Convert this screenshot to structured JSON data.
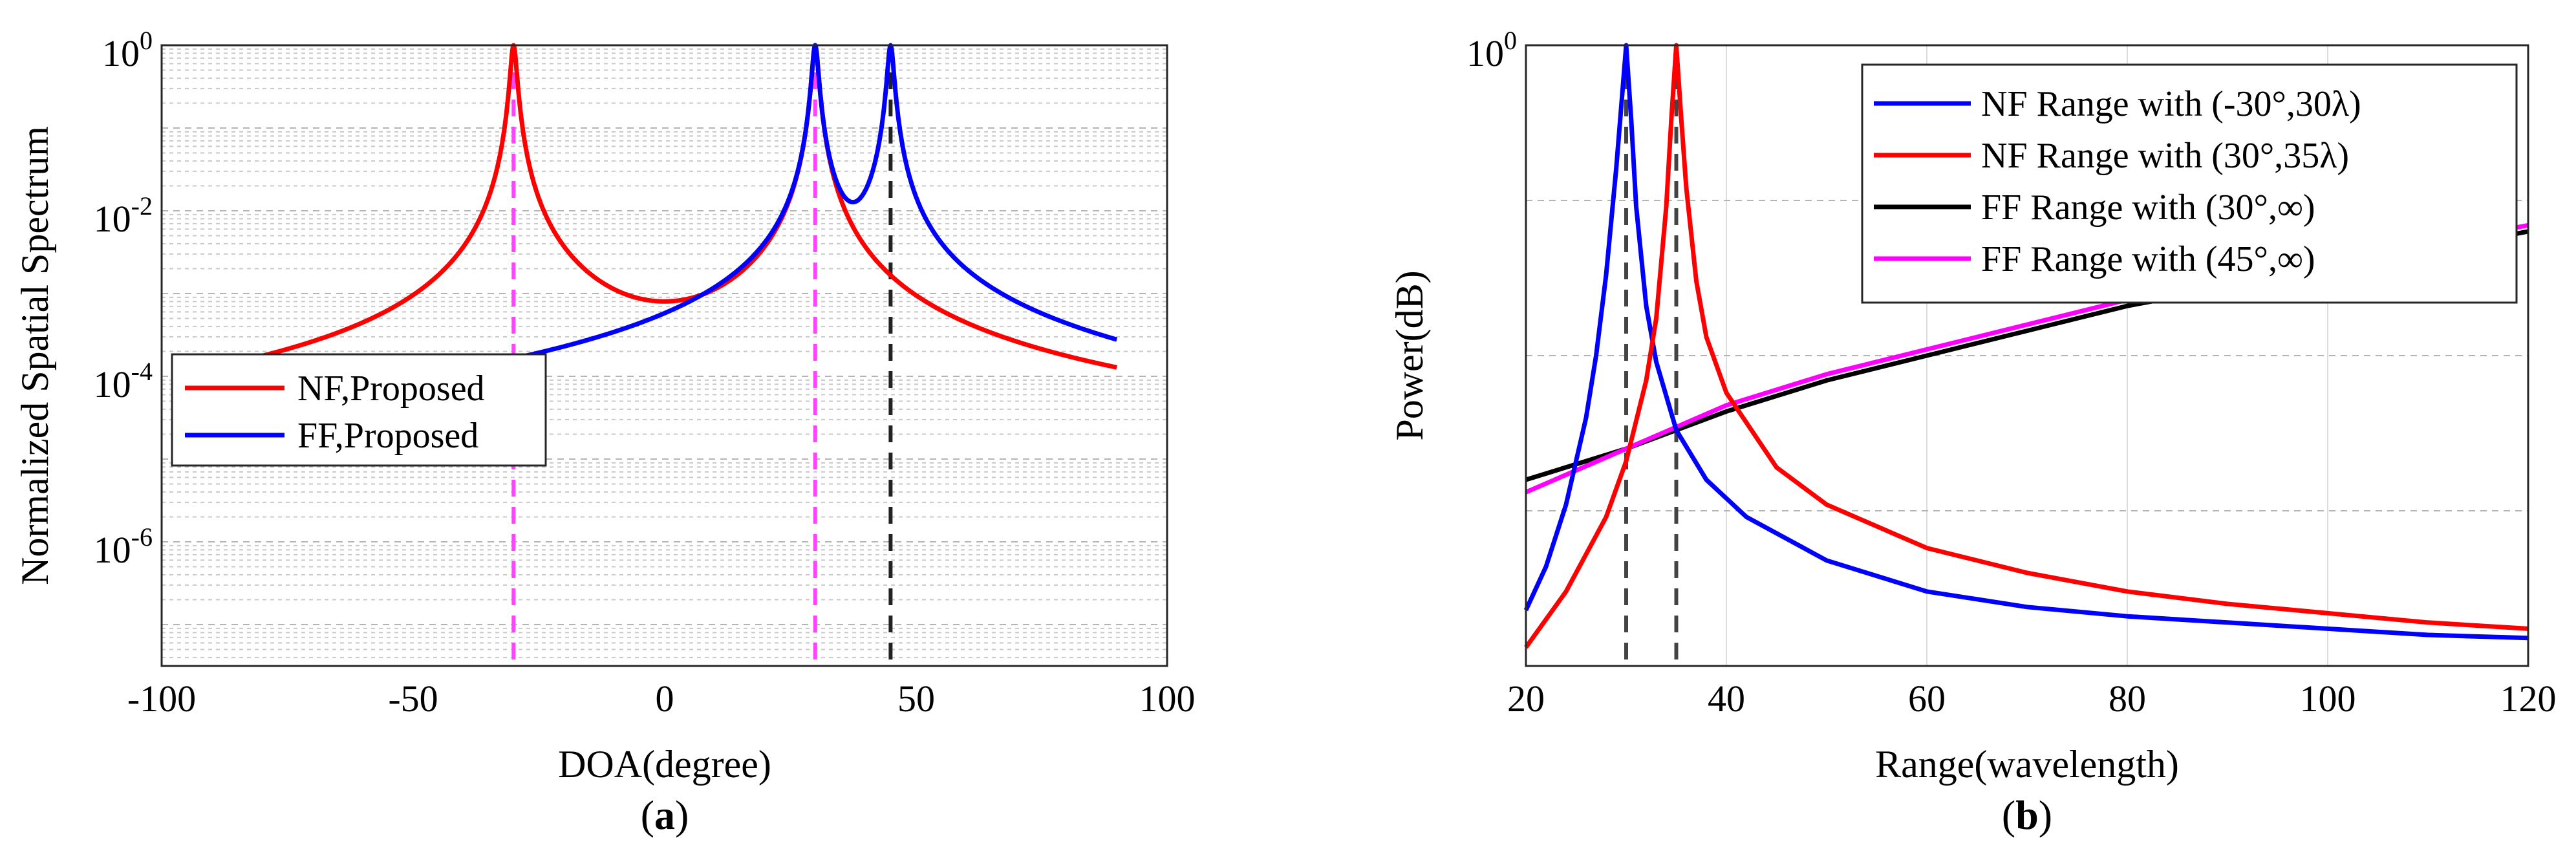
{
  "chart_data": [
    {
      "type": "line",
      "panel_label_prefix": "(",
      "panel_label": "a",
      "panel_label_suffix": ")",
      "xlabel": "DOA(degree)",
      "ylabel": "Normalized Spatial Spectrum",
      "xlim": [
        -100,
        100
      ],
      "ylim_log10": [
        -7.5,
        0
      ],
      "yscale": "log",
      "x_ticks": [
        "-100",
        "-50",
        "0",
        "50",
        "100"
      ],
      "y_tick_base": "10",
      "y_tick_exponents": [
        "0",
        "-2",
        "-4",
        "-6"
      ],
      "grid": "y minor",
      "legend_position": "middle-left",
      "series": [
        {
          "name": "NF,Proposed",
          "color": "#ff0000",
          "floor": 3e-06,
          "peaks_deg": [
            -30,
            30
          ],
          "peak_width": 0.6,
          "extent": [
            -90,
            90
          ]
        },
        {
          "name": "FF,Proposed",
          "color": "#0000ff",
          "floor": 1.5e-07,
          "peaks_deg": [
            30,
            45
          ],
          "peak_width": 0.6,
          "extent": [
            -90,
            90
          ]
        }
      ],
      "reference_lines": [
        {
          "x": -30,
          "color": "#ff44ff"
        },
        {
          "x": 30,
          "color": "#ff44ff"
        },
        {
          "x": 45,
          "color": "#222222"
        }
      ]
    },
    {
      "type": "line",
      "panel_label_prefix": "(",
      "panel_label": "b",
      "panel_label_suffix": ")",
      "xlabel": "Range(wavelength)",
      "ylabel": "Power(dB)",
      "xlim": [
        20,
        120
      ],
      "ylim": [
        0,
        1
      ],
      "x_ticks": [
        "20",
        "40",
        "60",
        "80",
        "100",
        "120"
      ],
      "y_tick_base": "10",
      "y_tick_exponent": "0",
      "grid": "on",
      "legend_position": "top-right",
      "series": [
        {
          "name": "NF Range with (-30°,30λ)",
          "color": "#0000ff",
          "x": [
            20,
            22,
            24,
            26,
            27,
            28,
            29,
            29.5,
            30,
            30.5,
            31,
            32,
            33,
            35,
            38,
            42,
            50,
            60,
            70,
            80,
            90,
            100,
            110,
            120
          ],
          "y": [
            0.09,
            0.16,
            0.26,
            0.4,
            0.5,
            0.63,
            0.8,
            0.9,
            1.0,
            0.88,
            0.74,
            0.58,
            0.49,
            0.38,
            0.3,
            0.24,
            0.17,
            0.12,
            0.095,
            0.08,
            0.07,
            0.06,
            0.05,
            0.045
          ]
        },
        {
          "name": "NF Range with (30°,35λ)",
          "color": "#ff0000",
          "x": [
            20,
            24,
            28,
            30,
            32,
            33,
            34,
            34.5,
            35,
            35.5,
            36,
            37,
            38,
            40,
            45,
            50,
            60,
            70,
            80,
            90,
            100,
            110,
            120
          ],
          "y": [
            0.03,
            0.12,
            0.24,
            0.33,
            0.46,
            0.56,
            0.74,
            0.88,
            1.0,
            0.88,
            0.77,
            0.62,
            0.53,
            0.44,
            0.32,
            0.26,
            0.19,
            0.15,
            0.12,
            0.1,
            0.085,
            0.07,
            0.06
          ]
        },
        {
          "name": "FF Range with (30°,∞)",
          "color": "#000000",
          "x": [
            20,
            30,
            40,
            50,
            60,
            70,
            80,
            90,
            100,
            110,
            120
          ],
          "y": [
            0.3,
            0.35,
            0.41,
            0.46,
            0.5,
            0.54,
            0.58,
            0.61,
            0.64,
            0.67,
            0.7
          ]
        },
        {
          "name": "FF Range with (45°,∞)",
          "color": "#ff00ff",
          "x": [
            20,
            30,
            40,
            50,
            60,
            70,
            80,
            90,
            100,
            110,
            120
          ],
          "y": [
            0.28,
            0.35,
            0.42,
            0.47,
            0.51,
            0.55,
            0.59,
            0.62,
            0.65,
            0.68,
            0.71
          ]
        }
      ],
      "reference_lines": [
        {
          "x": 30,
          "color": "#444444"
        },
        {
          "x": 35,
          "color": "#444444"
        }
      ]
    }
  ]
}
